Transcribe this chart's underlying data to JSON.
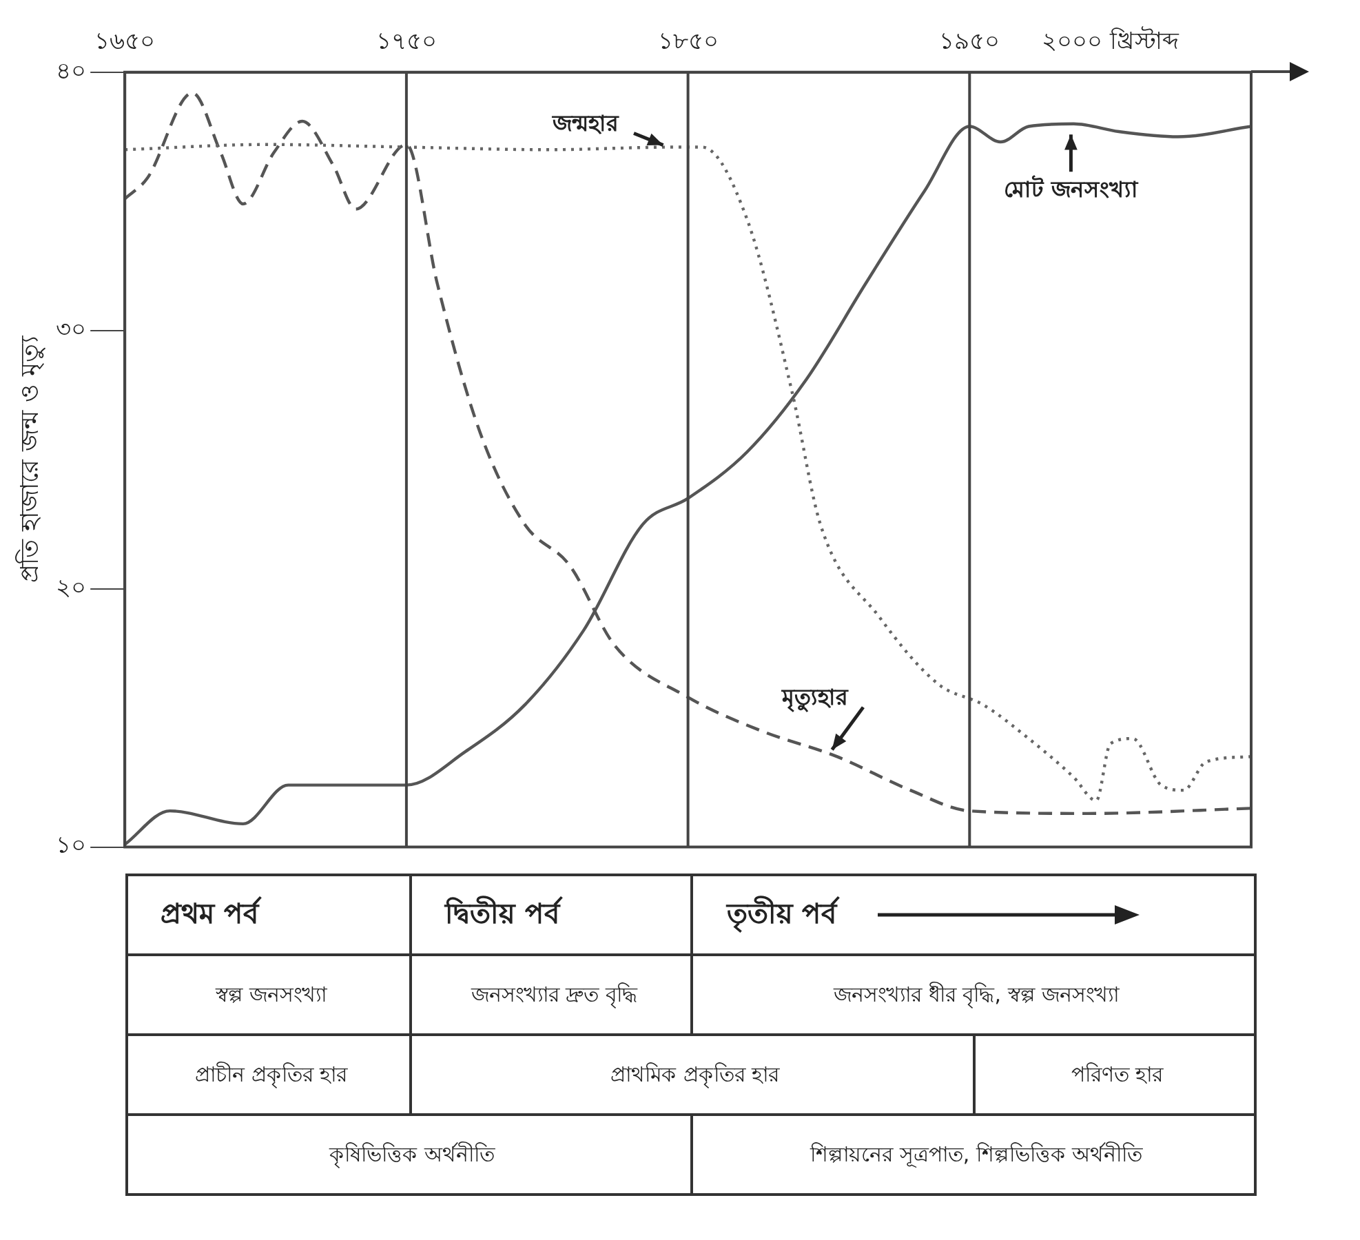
{
  "chart_data": {
    "type": "line",
    "ylabel": "প্রতি হাজারে জন্ম ও মৃত্যু",
    "xlim": [
      1650,
      2050
    ],
    "xticks": [
      {
        "value": 1650,
        "label": "১৬৫০"
      },
      {
        "value": 1750,
        "label": "১৭৫০"
      },
      {
        "value": 1850,
        "label": "১৮৫০"
      },
      {
        "value": 1950,
        "label": "১৯৫০"
      },
      {
        "value": 2000,
        "label": "২০০০ খ্রিস্টাব্দ"
      }
    ],
    "ylim": [
      10,
      40
    ],
    "yticks": [
      {
        "value": 10,
        "label": "১০"
      },
      {
        "value": 20,
        "label": "২০"
      },
      {
        "value": 30,
        "label": "৩০"
      },
      {
        "value": 40,
        "label": "৪০"
      }
    ],
    "grid": false,
    "legend": false,
    "marker": "none",
    "series": [
      {
        "color": "#666666",
        "line_style": "dotted",
        "x": [
          1650,
          1700,
          1750,
          1800,
          1845,
          1855,
          1871,
          1887,
          1897,
          1918,
          1939,
          1955,
          1971,
          1987,
          1995,
          2000,
          2008,
          2018,
          2026,
          2034,
          2050
        ],
        "values": [
          37.0,
          37.2,
          37.1,
          37.0,
          37.1,
          37.1,
          34.3,
          27.6,
          22.5,
          18.9,
          16.3,
          15.5,
          14.2,
          12.7,
          11.8,
          14.0,
          14.2,
          12.4,
          12.2,
          13.3,
          13.5
        ]
      },
      {
        "color": "#555555",
        "line_style": "dashed",
        "x": [
          1650,
          1658,
          1674,
          1684,
          1692,
          1703,
          1713,
          1724,
          1732,
          1750,
          1761,
          1776,
          1792,
          1808,
          1824,
          1850,
          1876,
          1903,
          1929,
          1950,
          1992,
          2050
        ],
        "values": [
          35.1,
          35.9,
          39.2,
          36.9,
          34.9,
          36.9,
          38.1,
          36.4,
          34.7,
          37.2,
          31.8,
          26.1,
          22.5,
          20.9,
          17.8,
          15.8,
          14.5,
          13.5,
          12.2,
          11.4,
          11.3,
          11.5
        ]
      },
      {
        "color": "#555555",
        "line_style": "solid",
        "x": [
          1650,
          1666,
          1692,
          1708,
          1729,
          1750,
          1771,
          1792,
          1813,
          1834,
          1850,
          1871,
          1892,
          1913,
          1934,
          1950,
          1961,
          1971,
          1987,
          2003,
          2024,
          2050
        ],
        "values": [
          10.1,
          11.4,
          10.9,
          12.4,
          12.4,
          12.4,
          13.7,
          15.5,
          18.4,
          22.5,
          23.5,
          25.3,
          28.1,
          31.8,
          35.4,
          37.9,
          37.3,
          37.9,
          38.0,
          37.7,
          37.5,
          37.9
        ]
      }
    ],
    "ref_lines": [
      {
        "axis": "x",
        "value": 1750,
        "color": "#444444"
      },
      {
        "axis": "x",
        "value": 1850,
        "color": "#444444"
      },
      {
        "axis": "x",
        "value": 1950,
        "color": "#444444"
      }
    ],
    "annotations": [
      {
        "text": "জন্মহার",
        "x": 1843,
        "y": 37.1
      },
      {
        "text": "মৃত্যুহার",
        "x": 1900,
        "y": 13.6
      },
      {
        "text": "মোট জনসংখ্যা",
        "x": 1986,
        "y": 37.8
      },
      "প্রথম পর্ব",
      "দ্বিতীয় পর্ব",
      "তৃতীয় পর্ব",
      "স্বল্প জনসংখ্যা",
      "জনসংখ্যার দ্রুত বৃদ্ধি",
      "জনসংখ্যার ধীর বৃদ্ধি, স্বল্প জনসংখ্যা",
      "প্রাচীন প্রকৃতির হার",
      "প্রাথমিক প্রকৃতির হার",
      "পরিণত হার",
      "কৃষিভিত্তিক অর্থনীতি",
      "শিল্পায়নের সূত্রপাত, শিল্পভিত্তিক অর্থনীতি"
    ]
  }
}
